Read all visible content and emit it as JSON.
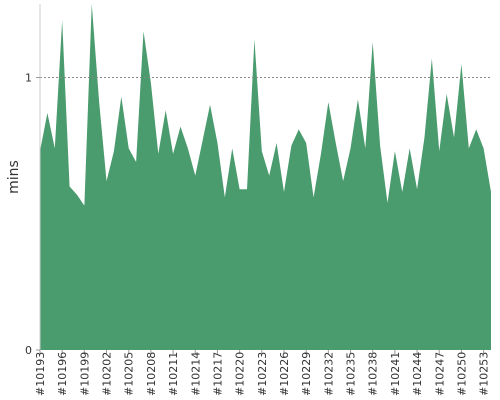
{
  "chart_data": {
    "type": "area",
    "title": "",
    "xlabel": "",
    "ylabel": "mins",
    "ylim": [
      0,
      1.27
    ],
    "y_ticks": [
      0,
      1
    ],
    "y_tick_labels": [
      "0",
      "1"
    ],
    "x_ticks": [
      "#10193",
      "#10196",
      "#10199",
      "#10202",
      "#10205",
      "#10208",
      "#10211",
      "#10214",
      "#10217",
      "#10220",
      "#10223",
      "#10226",
      "#10229",
      "#10232",
      "#10235",
      "#10238",
      "#10241",
      "#10244",
      "#10247",
      "#10250",
      "#10253"
    ],
    "reference_line": 1,
    "grid": false,
    "legend": "none",
    "color": "#4a9b6e",
    "reference_line_color": "#888888",
    "series": [
      {
        "x": [
          10193,
          10194,
          10195,
          10196,
          10197,
          10198,
          10199,
          10200,
          10201,
          10202,
          10203,
          10204,
          10205,
          10206,
          10207,
          10208,
          10209,
          10210,
          10211,
          10212,
          10213,
          10214,
          10215,
          10216,
          10217,
          10218,
          10219,
          10220,
          10221,
          10222,
          10223,
          10224,
          10225,
          10226,
          10227,
          10228,
          10229,
          10230,
          10231,
          10232,
          10233,
          10234,
          10235,
          10236,
          10237,
          10238,
          10239,
          10240,
          10241,
          10242,
          10243,
          10244,
          10245,
          10246,
          10247,
          10248,
          10249,
          10250,
          10251,
          10252,
          10253,
          10254
        ],
        "values": [
          0.73,
          0.87,
          0.74,
          1.21,
          0.6,
          0.57,
          0.53,
          1.27,
          0.91,
          0.62,
          0.73,
          0.93,
          0.74,
          0.69,
          1.17,
          0.98,
          0.72,
          0.88,
          0.72,
          0.82,
          0.74,
          0.64,
          0.77,
          0.9,
          0.76,
          0.56,
          0.74,
          0.59,
          0.59,
          1.14,
          0.73,
          0.64,
          0.76,
          0.58,
          0.75,
          0.81,
          0.76,
          0.56,
          0.72,
          0.91,
          0.76,
          0.62,
          0.74,
          0.92,
          0.74,
          1.13,
          0.75,
          0.54,
          0.73,
          0.58,
          0.74,
          0.59,
          0.78,
          1.07,
          0.73,
          0.94,
          0.78,
          1.05,
          0.74,
          0.81,
          0.74,
          0.58
        ]
      }
    ]
  }
}
